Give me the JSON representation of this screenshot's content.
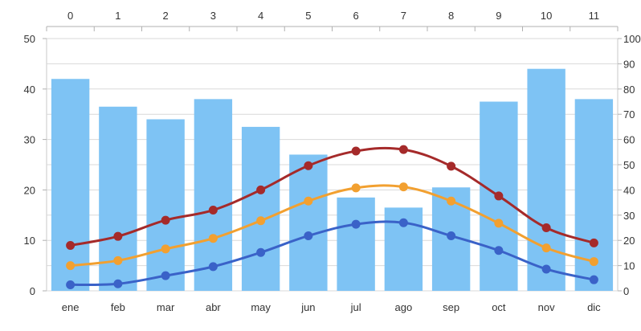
{
  "chart_data": {
    "type": "bar",
    "categories": [
      "ene",
      "feb",
      "mar",
      "abr",
      "may",
      "jun",
      "jul",
      "ago",
      "sep",
      "oct",
      "nov",
      "dic"
    ],
    "top_axis_ticks": [
      "0",
      "1",
      "2",
      "3",
      "4",
      "5",
      "6",
      "7",
      "8",
      "9",
      "10",
      "11"
    ],
    "left_axis": {
      "min": 0,
      "max": 50,
      "ticks": [
        "0",
        "10",
        "20",
        "30",
        "40",
        "50"
      ]
    },
    "right_axis": {
      "min": 0,
      "max": 100,
      "ticks": [
        "0",
        "10",
        "20",
        "30",
        "40",
        "50",
        "60",
        "70",
        "80",
        "90",
        "100"
      ]
    },
    "bar_series": {
      "axis": "right",
      "color": "#7ec3f4",
      "values": [
        84,
        73,
        68,
        76,
        65,
        54,
        37,
        33,
        41,
        75,
        88,
        76
      ]
    },
    "series": [
      {
        "axis": "left",
        "color": "#a52a2a",
        "values": [
          9.0,
          10.8,
          14.0,
          16.0,
          20.0,
          24.8,
          27.7,
          28.0,
          24.7,
          18.8,
          12.5,
          9.5
        ]
      },
      {
        "axis": "left",
        "color": "#f2a030",
        "values": [
          5.0,
          6.0,
          8.3,
          10.4,
          13.9,
          17.8,
          20.4,
          20.6,
          17.8,
          13.4,
          8.5,
          5.8
        ]
      },
      {
        "axis": "left",
        "color": "#3a62c8",
        "values": [
          1.2,
          1.4,
          3.0,
          4.8,
          7.6,
          10.9,
          13.2,
          13.5,
          10.9,
          8.0,
          4.3,
          2.2
        ]
      }
    ],
    "grid": true,
    "title": "",
    "xlabel": "",
    "ylabel": ""
  }
}
